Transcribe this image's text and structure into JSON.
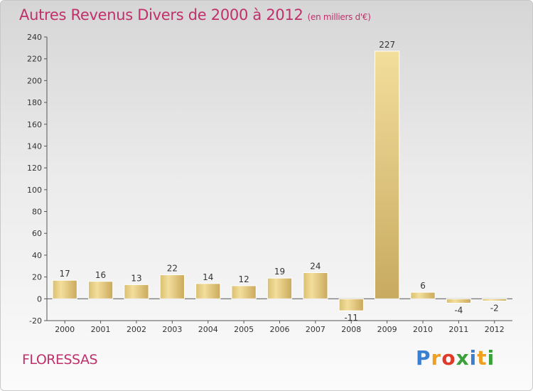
{
  "title": "Autres Revenus Divers de 2000 à 2012",
  "unit_label": "(en milliers d'€)",
  "town": "FLORESSAS",
  "logo": {
    "text": "Proxiti",
    "letters": [
      "P",
      "r",
      "o",
      "x",
      "i",
      "t",
      "i"
    ],
    "colors": [
      "#3a7fd0",
      "#f0a020",
      "#e03a2a",
      "#3aa03a",
      "#3a7fd0",
      "#f0a020",
      "#3aa03a"
    ]
  },
  "chart_data": {
    "type": "bar",
    "title": "Autres Revenus Divers de 2000 à 2012",
    "xlabel": "",
    "ylabel": "",
    "categories": [
      "2000",
      "2001",
      "2002",
      "2003",
      "2004",
      "2005",
      "2006",
      "2007",
      "2008",
      "2009",
      "2010",
      "2011",
      "2012"
    ],
    "values": [
      17,
      16,
      13,
      22,
      14,
      12,
      19,
      24,
      -11,
      227,
      6,
      -4,
      -2
    ],
    "data_labels": [
      "17",
      "16",
      "13",
      "22",
      "14",
      "12",
      "19",
      "24",
      "-11",
      "227",
      "6",
      "-4",
      "-2"
    ],
    "ylim": [
      -20,
      240
    ],
    "yticks": [
      -20,
      0,
      20,
      40,
      60,
      80,
      100,
      120,
      140,
      160,
      180,
      200,
      220,
      240
    ],
    "grid": false,
    "legend": "none",
    "bar_color": "#e6cd82"
  }
}
